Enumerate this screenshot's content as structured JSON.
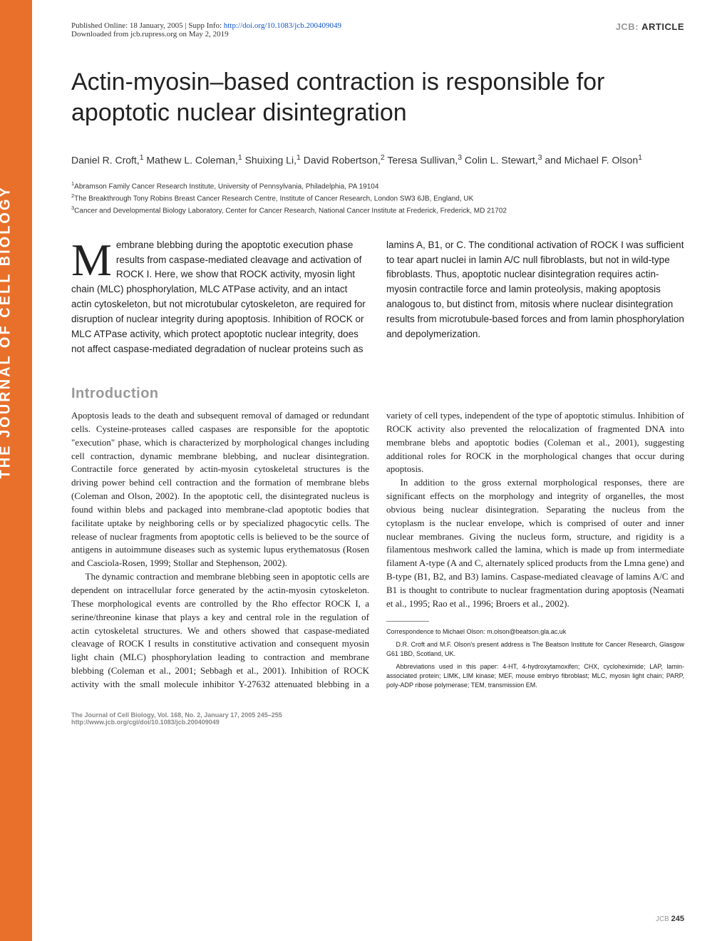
{
  "header": {
    "published": "Published Online: 18 January, 2005 | Supp Info: ",
    "doi_url": "http://doi.org/10.1083/jcb.200409049",
    "downloaded": "Downloaded from jcb.rupress.org on May 2, 2019",
    "journal_label": "JCB:",
    "article_label": "ARTICLE"
  },
  "sidebar": "THE JOURNAL OF CELL BIOLOGY",
  "title": "Actin-myosin–based contraction is responsible for apoptotic nuclear disintegration",
  "authors_html": "Daniel R. Croft,<sup>1</sup> Mathew L. Coleman,<sup>1</sup> Shuixing Li,<sup>1</sup> David Robertson,<sup>2</sup> Teresa Sullivan,<sup>3</sup> Colin L. Stewart,<sup>3</sup> and Michael F. Olson<sup>1</sup>",
  "affiliations": {
    "a1": "Abramson Family Cancer Research Institute, University of Pennsylvania, Philadelphia, PA 19104",
    "a2": "The Breakthrough Tony Robins Breast Cancer Research Centre, Institute of Cancer Research, London SW3 6JB, England, UK",
    "a3": "Cancer and Developmental Biology Laboratory, Center for Cancer Research, National Cancer Institute at Frederick, Frederick, MD 21702"
  },
  "abstract": {
    "dropcap": "M",
    "text": "embrane blebbing during the apoptotic execution phase results from caspase-mediated cleavage and activation of ROCK I. Here, we show that ROCK activity, myosin light chain (MLC) phosphorylation, MLC ATPase activity, and an intact actin cytoskeleton, but not microtubular cytoskeleton, are required for disruption of nuclear integrity during apoptosis. Inhibition of ROCK or MLC ATPase activity, which protect apoptotic nuclear integrity, does not affect caspase-mediated degradation of nuclear proteins such as lamins A, B1, or C. The conditional activation of ROCK I was sufficient to tear apart nuclei in lamin A/C null fibroblasts, but not in wild-type fibroblasts. Thus, apoptotic nuclear disintegration requires actin-myosin contractile force and lamin proteolysis, making apoptosis analogous to, but distinct from, mitosis where nuclear disintegration results from microtubule-based forces and from lamin phosphorylation and depolymerization."
  },
  "introduction": {
    "heading": "Introduction",
    "p1": "Apoptosis leads to the death and subsequent removal of damaged or redundant cells. Cysteine-proteases called caspases are responsible for the apoptotic \"execution\" phase, which is characterized by morphological changes including cell contraction, dynamic membrane blebbing, and nuclear disintegration. Contractile force generated by actin-myosin cytoskeletal structures is the driving power behind cell contraction and the formation of membrane blebs (Coleman and Olson, 2002). In the apoptotic cell, the disintegrated nucleus is found within blebs and packaged into membrane-clad apoptotic bodies that facilitate uptake by neighboring cells or by specialized phagocytic cells. The release of nuclear fragments from apoptotic cells is believed to be the source of antigens in autoimmune diseases such as systemic lupus erythematosus (Rosen and Casciola-Rosen, 1999; Stollar and Stephenson, 2002).",
    "p2": "The dynamic contraction and membrane blebbing seen in apoptotic cells are dependent on intracellular force generated by the actin-myosin cytoskeleton. These morphological events are controlled by the Rho effector ROCK I, a serine/threonine kinase that plays a key and central role in the regulation of actin cytoskeletal structures. We and others showed that caspase-mediated cleavage of ROCK I results in constitutive activation and consequent myosin light chain (MLC) phosphorylation leading to contraction and membrane blebbing (Coleman et al., 2001; Sebbagh et al., 2001). Inhibition of ROCK activity with the small molecule inhibitor Y-27632 attenuated blebbing in a variety of cell types, independent of the type of apoptotic stimulus. Inhibition of ROCK activity also prevented the relocalization of fragmented DNA into membrane blebs and apoptotic bodies (Coleman et al., 2001), suggesting additional roles for ROCK in the morphological changes that occur during apoptosis.",
    "p3": "In addition to the gross external morphological responses, there are significant effects on the morphology and integrity of organelles, the most obvious being nuclear disintegration. Separating the nucleus from the cytoplasm is the nuclear envelope, which is comprised of outer and inner nuclear membranes. Giving the nucleus form, structure, and rigidity is a filamentous meshwork called the lamina, which is made up from intermediate filament A-type (A and C, alternately spliced products from the Lmna gene) and B-type (B1, B2, and B3) lamins. Caspase-mediated cleavage of lamins A/C and B1 is thought to contribute to nuclear fragmentation during apoptosis (Neamati et al., 1995; Rao et al., 1996; Broers et al., 2002)."
  },
  "correspondence": {
    "line1": "Correspondence to Michael Olson: m.olson@beatson.gla.ac.uk",
    "line2": "D.R. Croft and M.F. Olson's present address is The Beatson Institute for Cancer Research, Glasgow G61 1BD, Scotland, UK.",
    "line3": "Abbreviations used in this paper: 4-HT, 4-hydroxytamoxifen; CHX, cycloheximide; LAP, lamin-associated protein; LIMK, LIM kinase; MEF, mouse embryo fibroblast; MLC, myosin light chain; PARP, poly-ADP ribose polymerase; TEM, transmission EM."
  },
  "footer": {
    "citation": "The Journal of Cell Biology, Vol. 168, No. 2, January 17, 2005 245–255",
    "url": "http://www.jcb.org/cgi/doi/10.1083/jcb.200409049"
  },
  "page_number": {
    "label": "JCB",
    "num": "245"
  },
  "colors": {
    "accent": "#e8702a",
    "heading_gray": "#999999",
    "link": "#1155cc",
    "text": "#222222"
  }
}
